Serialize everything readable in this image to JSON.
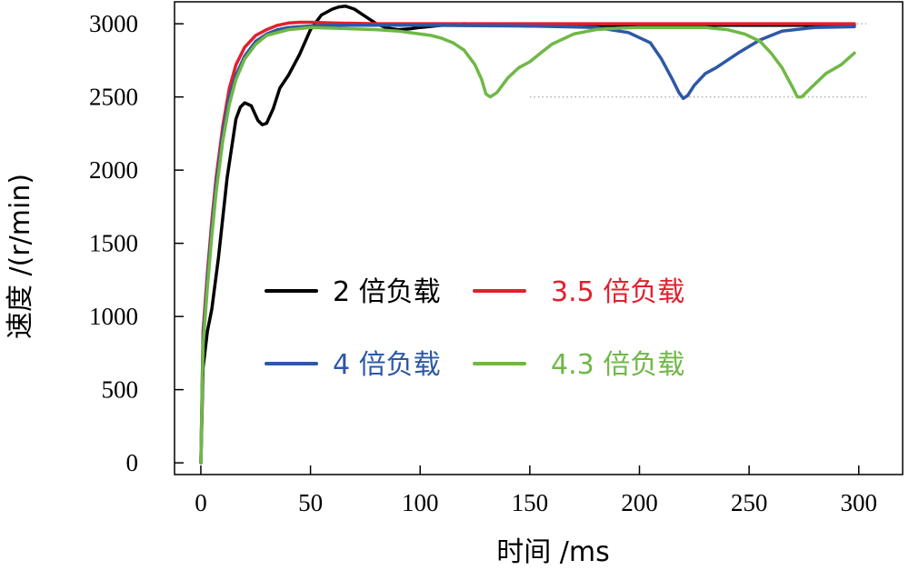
{
  "chart_data": {
    "type": "line",
    "xlabel": "时间 /ms",
    "ylabel": "速度 /(r/min)",
    "xlim": [
      -12,
      320
    ],
    "ylim": [
      -80,
      3150
    ],
    "xticks": [
      0,
      50,
      100,
      150,
      200,
      250,
      300
    ],
    "yticks": [
      0,
      500,
      1000,
      1500,
      2000,
      2500,
      3000
    ],
    "grid": false,
    "legend_placement": "center",
    "reference_lines": [
      {
        "y": 3000,
        "style": "dotted",
        "color": "#b0b0b0"
      },
      {
        "y": 2500,
        "style": "dotted",
        "color": "#b0b0b0"
      }
    ],
    "series": [
      {
        "name": "2 倍负载",
        "color": "#000000",
        "x": [
          0,
          1,
          3,
          5,
          8,
          12,
          16,
          18,
          20,
          23,
          26,
          28,
          30,
          33,
          36,
          40,
          45,
          50,
          55,
          60,
          63,
          66,
          70,
          75,
          80,
          85,
          90,
          95,
          100,
          110,
          120,
          130,
          150,
          200,
          250,
          298
        ],
        "y": [
          0,
          650,
          900,
          1050,
          1400,
          1950,
          2350,
          2430,
          2460,
          2440,
          2340,
          2310,
          2320,
          2420,
          2560,
          2650,
          2790,
          2960,
          3060,
          3100,
          3115,
          3120,
          3100,
          3050,
          3000,
          2970,
          2960,
          2965,
          2975,
          2990,
          3000,
          2995,
          2985,
          2990,
          2990,
          2990
        ]
      },
      {
        "name": "3.5 倍负载",
        "color": "#e2202e",
        "x": [
          0,
          1,
          3,
          5,
          7,
          10,
          13,
          16,
          20,
          25,
          30,
          35,
          40,
          45,
          50,
          60,
          80,
          100,
          150,
          200,
          250,
          298
        ],
        "y": [
          0,
          900,
          1300,
          1650,
          1950,
          2300,
          2560,
          2720,
          2840,
          2920,
          2960,
          2990,
          3005,
          3010,
          3010,
          3005,
          3000,
          3000,
          3000,
          3000,
          3000,
          3000
        ]
      },
      {
        "name": "4 倍负载",
        "color": "#2d58a6",
        "x": [
          0,
          1,
          3,
          5,
          7,
          10,
          13,
          16,
          20,
          25,
          30,
          35,
          40,
          50,
          60,
          100,
          150,
          180,
          195,
          205,
          210,
          215,
          218,
          220,
          222,
          225,
          230,
          235,
          245,
          255,
          265,
          280,
          298
        ],
        "y": [
          0,
          850,
          1250,
          1600,
          1900,
          2250,
          2500,
          2650,
          2780,
          2880,
          2930,
          2960,
          2975,
          2985,
          2990,
          2990,
          2985,
          2975,
          2940,
          2870,
          2760,
          2620,
          2530,
          2490,
          2510,
          2580,
          2660,
          2700,
          2800,
          2890,
          2950,
          2975,
          2980
        ]
      },
      {
        "name": "4.3 倍负载",
        "color": "#6fb845",
        "x": [
          0,
          1,
          3,
          5,
          7,
          10,
          13,
          16,
          20,
          25,
          30,
          40,
          50,
          60,
          80,
          90,
          100,
          105,
          110,
          115,
          120,
          125,
          128,
          130,
          132,
          135,
          140,
          145,
          150,
          155,
          160,
          170,
          180,
          190,
          200,
          210,
          220,
          230,
          240,
          248,
          255,
          260,
          265,
          270,
          272,
          274,
          278,
          285,
          292,
          298
        ],
        "y": [
          0,
          800,
          1200,
          1550,
          1850,
          2200,
          2450,
          2620,
          2760,
          2860,
          2920,
          2960,
          2975,
          2970,
          2960,
          2950,
          2930,
          2920,
          2900,
          2870,
          2820,
          2720,
          2620,
          2520,
          2500,
          2530,
          2630,
          2700,
          2740,
          2800,
          2860,
          2930,
          2960,
          2970,
          2975,
          2975,
          2975,
          2975,
          2960,
          2930,
          2880,
          2800,
          2700,
          2560,
          2500,
          2500,
          2560,
          2660,
          2720,
          2800
        ]
      }
    ]
  }
}
